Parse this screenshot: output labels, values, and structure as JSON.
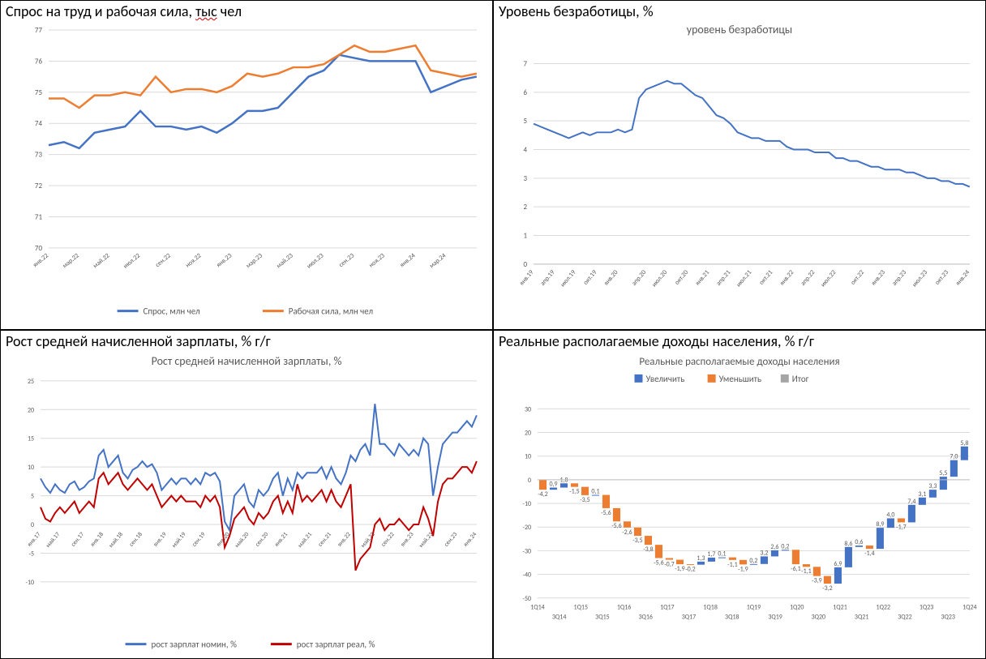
{
  "chart1": {
    "type": "line",
    "title_prefix": "Спрос на труд и рабочая сила, ",
    "title_squiggly": "тыс",
    "title_suffix": " чел",
    "x_labels": [
      "янв.22",
      "мар.22",
      "май.22",
      "июл.22",
      "сен.22",
      "ноя.22",
      "янв.23",
      "мар.23",
      "май.23",
      "июл.23",
      "сен.23",
      "ноя.23",
      "янв.24",
      "мар.24"
    ],
    "ylim": [
      70,
      77
    ],
    "ytick_step": 1,
    "grid_color": "#d9d9d9",
    "background_color": "#ffffff",
    "label_fontsize": 9,
    "line_width": 2.5,
    "series": [
      {
        "name": "Спрос, млн чел",
        "color": "#4472c4",
        "values": [
          73.3,
          73.4,
          73.2,
          73.7,
          73.8,
          73.9,
          74.4,
          73.9,
          73.9,
          73.8,
          73.9,
          73.7,
          74.0,
          74.4,
          74.4,
          74.5,
          75.0,
          75.5,
          75.7,
          76.2,
          76.1,
          76.0,
          76.0,
          76.0,
          76.0,
          75.0,
          75.2,
          75.4,
          75.5
        ]
      },
      {
        "name": "Рабочая сила, млн чел",
        "color": "#ed7d31",
        "values": [
          74.8,
          74.8,
          74.5,
          74.9,
          74.9,
          75.0,
          74.9,
          75.5,
          75.0,
          75.1,
          75.1,
          75.0,
          75.2,
          75.6,
          75.5,
          75.6,
          75.8,
          75.8,
          75.9,
          76.2,
          76.5,
          76.3,
          76.3,
          76.4,
          76.5,
          75.7,
          75.6,
          75.5,
          75.6
        ]
      }
    ],
    "legend_labels": [
      "Спрос, млн чел",
      "Рабочая сила, млн чел"
    ]
  },
  "chart2": {
    "type": "line",
    "title": "Уровень безработицы, %",
    "subtitle": "уровень безработицы",
    "x_labels": [
      "янв.19",
      "апр.19",
      "июл.19",
      "окт.19",
      "янв.20",
      "апр.20",
      "июл.20",
      "окт.20",
      "янв.21",
      "апр.21",
      "июл.21",
      "окт.21",
      "янв.22",
      "апр.22",
      "июл.22",
      "окт.22",
      "янв.23",
      "апр.23",
      "июл.23",
      "окт.23",
      "янв.24"
    ],
    "ylim": [
      0,
      7.5
    ],
    "ytick_step": 1,
    "grid_color": "#d9d9d9",
    "background_color": "#ffffff",
    "label_fontsize": 9,
    "line_width": 2,
    "series": [
      {
        "name": "уровень безработицы",
        "color": "#4472c4",
        "values": [
          4.9,
          4.8,
          4.7,
          4.6,
          4.5,
          4.4,
          4.5,
          4.6,
          4.5,
          4.6,
          4.6,
          4.6,
          4.7,
          4.6,
          4.7,
          5.8,
          6.1,
          6.2,
          6.3,
          6.4,
          6.3,
          6.3,
          6.1,
          5.9,
          5.8,
          5.5,
          5.2,
          5.1,
          4.9,
          4.6,
          4.5,
          4.4,
          4.4,
          4.3,
          4.3,
          4.3,
          4.1,
          4.0,
          4.0,
          4.0,
          3.9,
          3.9,
          3.9,
          3.7,
          3.7,
          3.6,
          3.6,
          3.5,
          3.4,
          3.4,
          3.3,
          3.3,
          3.3,
          3.2,
          3.2,
          3.1,
          3.0,
          3.0,
          2.9,
          2.9,
          2.8,
          2.8,
          2.7
        ]
      }
    ]
  },
  "chart3": {
    "type": "line",
    "title": "Рост средней начисленной зарплаты, % г/г",
    "subtitle": "Рост средней начисленной зарплаты, %",
    "x_labels": [
      "янв.17",
      "май.17",
      "сен.17",
      "янв.18",
      "май.18",
      "сен.18",
      "янв.19",
      "май.19",
      "сен.19",
      "янв.20",
      "май.20",
      "сен.20",
      "янв.21",
      "май.21",
      "сен.21",
      "янв.22",
      "май.22",
      "сен.22",
      "янв.23",
      "май.23",
      "сен.23",
      "янв.24"
    ],
    "ylim": [
      -10,
      25
    ],
    "ytick_step": 5,
    "grid_color": "#d9d9d9",
    "background_color": "#ffffff",
    "label_fontsize": 8,
    "line_width": 2,
    "series": [
      {
        "name": "рост зарплат номин, %",
        "color": "#4472c4",
        "values": [
          8,
          6.5,
          5.5,
          7,
          6,
          5.5,
          7,
          7.5,
          6,
          6.5,
          7.5,
          8,
          12,
          13,
          10,
          11,
          12,
          9,
          8,
          9.5,
          10,
          11,
          10,
          10.5,
          9,
          6,
          7,
          8,
          7,
          8,
          8,
          7,
          8,
          7,
          9,
          8.5,
          9,
          7.5,
          0.5,
          -1,
          5,
          6,
          7,
          4,
          3,
          6,
          5,
          6,
          8,
          9,
          5,
          8,
          6,
          9,
          8,
          9,
          9,
          9,
          10,
          8,
          10,
          8,
          7,
          9,
          12,
          11,
          13,
          14,
          12,
          21,
          14,
          14,
          13,
          12,
          14,
          13,
          12,
          13,
          12,
          15,
          14,
          5,
          10,
          14,
          15,
          16,
          16,
          17,
          18,
          17,
          19
        ]
      },
      {
        "name": "рост зарплат реал, %",
        "color": "#c00000",
        "values": [
          3,
          1,
          0.5,
          2,
          3,
          2,
          3,
          4,
          2,
          3,
          4,
          3,
          8,
          9,
          7,
          8,
          9,
          7,
          6,
          7,
          8,
          7,
          6,
          7,
          5,
          3,
          4,
          5,
          4,
          5,
          4,
          4,
          4,
          3,
          5,
          4,
          5,
          3,
          -4,
          -2,
          1,
          2,
          3,
          1,
          0,
          2,
          1,
          2,
          4,
          5,
          2,
          4,
          2,
          7,
          4,
          5,
          4,
          5,
          6,
          4,
          6,
          4,
          3,
          5,
          7,
          -8,
          -6,
          -5,
          -4,
          0,
          1,
          -1,
          0,
          0,
          1,
          0,
          -1,
          0,
          0,
          3,
          1,
          -2,
          4,
          7,
          8,
          8,
          9,
          10,
          10,
          9,
          11
        ]
      }
    ],
    "legend_labels": [
      "рост зарплат номин, %",
      "рост зарплат реал, %"
    ]
  },
  "chart4": {
    "type": "waterfall",
    "title": "Реальные располагаемые доходы населения, % г/г",
    "subtitle": "Реальные располагаемые доходы населения",
    "x_labels_bottom": [
      "1Q14",
      "3Q14",
      "1Q15",
      "3Q15",
      "1Q16",
      "3Q16",
      "1Q17",
      "3Q17",
      "1Q18",
      "3Q18",
      "1Q19",
      "3Q19",
      "1Q20",
      "3Q20",
      "1Q21",
      "3Q21",
      "1Q22",
      "3Q22",
      "1Q23",
      "3Q23",
      "1Q24"
    ],
    "ylim": [
      -50,
      35
    ],
    "ytick_step": 10,
    "grid_color": "#d9d9d9",
    "background_color": "#ffffff",
    "label_fontsize": 8,
    "value_fontsize": 8,
    "bars": [
      {
        "v": -4.2,
        "c": "dec"
      },
      {
        "v": 0.9,
        "c": "inc"
      },
      {
        "v": 1.8,
        "c": "inc"
      },
      {
        "v": -1.5,
        "c": "dec"
      },
      {
        "v": -3.5,
        "c": "dec"
      },
      {
        "v": 0.1,
        "c": "inc"
      },
      {
        "v": -5.6,
        "c": "dec"
      },
      {
        "v": -5.6,
        "c": "dec"
      },
      {
        "v": -2.6,
        "c": "dec"
      },
      {
        "v": -3.5,
        "c": "dec"
      },
      {
        "v": -3.8,
        "c": "dec"
      },
      {
        "v": -5.6,
        "c": "dec"
      },
      {
        "v": -0.7,
        "c": "dec"
      },
      {
        "v": -1.9,
        "c": "dec"
      },
      {
        "v": -0.2,
        "c": "dec"
      },
      {
        "v": 1.3,
        "c": "inc"
      },
      {
        "v": 1.7,
        "c": "inc"
      },
      {
        "v": 0.1,
        "c": "inc"
      },
      {
        "v": -1.1,
        "c": "dec"
      },
      {
        "v": -1.9,
        "c": "dec"
      },
      {
        "v": 0.2,
        "c": "inc"
      },
      {
        "v": 3.2,
        "c": "inc"
      },
      {
        "v": 2.6,
        "c": "inc"
      },
      {
        "v": 0.2,
        "c": "inc"
      },
      {
        "v": -6.1,
        "c": "dec"
      },
      {
        "v": -1.1,
        "c": "dec"
      },
      {
        "v": -3.9,
        "c": "dec"
      },
      {
        "v": -3.2,
        "c": "dec"
      },
      {
        "v": 6.9,
        "c": "inc"
      },
      {
        "v": 8.6,
        "c": "inc"
      },
      {
        "v": 0.6,
        "c": "inc"
      },
      {
        "v": -1.4,
        "c": "dec"
      },
      {
        "v": 8.9,
        "c": "inc"
      },
      {
        "v": 4.0,
        "c": "inc"
      },
      {
        "v": -1.7,
        "c": "dec"
      },
      {
        "v": 7.4,
        "c": "inc"
      },
      {
        "v": 3.1,
        "c": "inc"
      },
      {
        "v": 3.3,
        "c": "inc"
      },
      {
        "v": 5.5,
        "c": "inc"
      },
      {
        "v": 7.0,
        "c": "inc"
      },
      {
        "v": 5.8,
        "c": "inc"
      }
    ],
    "colors": {
      "inc": "#4472c4",
      "dec": "#ed7d31",
      "tot": "#a5a5a5"
    },
    "legend_labels": [
      "Увеличить",
      "Уменьшить",
      "Итог"
    ]
  }
}
